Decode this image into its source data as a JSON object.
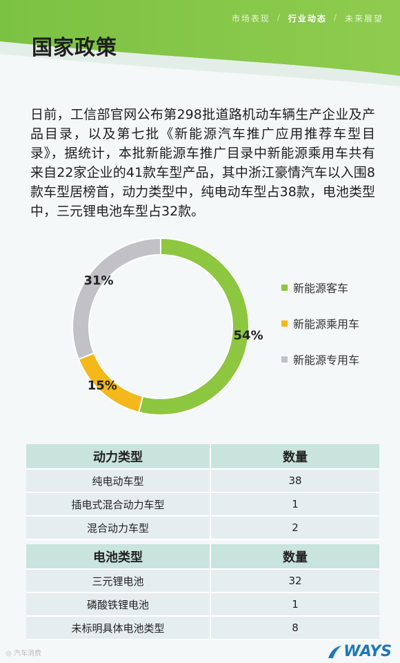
{
  "nav": {
    "items": [
      "市场表现",
      "行业动态",
      "未来展望"
    ],
    "separator": "/"
  },
  "header": {
    "title": "国家政策"
  },
  "intro": "日前，工信部官网公布第298批道路机动车辆生产企业及产品目录，以及第七批《新能源汽车推广应用推荐车型目录》，据统计，本批新能源车推广目录中新能源乘用车共有来自22家企业的41款车型产品，其中浙江豪情汽车以入围8款车型居榜首，动力类型中，纯电动车型占38款，电池类型中，三元锂电池车型占32款。",
  "chart_data": {
    "type": "pie",
    "categories": [
      "新能源客车",
      "新能源乘用车",
      "新能源专用车"
    ],
    "values": [
      54,
      15,
      31
    ],
    "labels": [
      "54%",
      "15%",
      "31%"
    ],
    "colors": [
      "#8dc63f",
      "#f5b81a",
      "#c2c1c6"
    ],
    "legend": "right"
  },
  "table_power": {
    "headers": [
      "动力类型",
      "数量"
    ],
    "rows": [
      [
        "纯电动车型",
        "38"
      ],
      [
        "插电式混合动力车型",
        "1"
      ],
      [
        "混合动力车型",
        "2"
      ]
    ]
  },
  "table_battery": {
    "headers": [
      "电池类型",
      "数量"
    ],
    "rows": [
      [
        "三元锂电池",
        "32"
      ],
      [
        "磷酸铁锂电池",
        "1"
      ],
      [
        "未标明具体电池类型",
        "8"
      ]
    ]
  },
  "footer": {
    "watermark": "汽车消费",
    "brand": "WAYS"
  }
}
